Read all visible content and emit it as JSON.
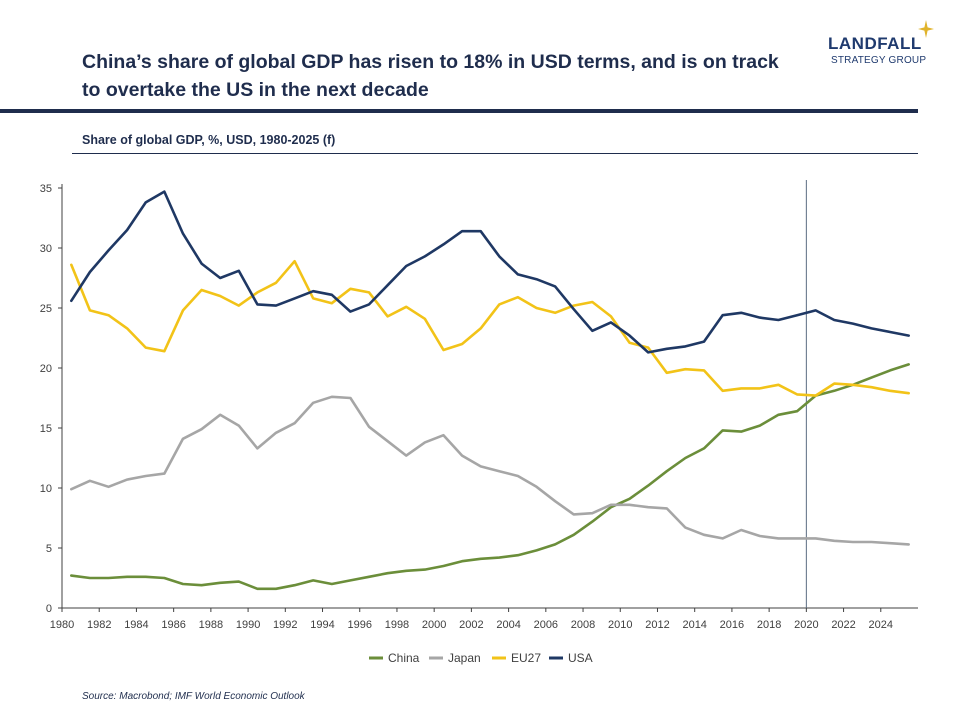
{
  "header": {
    "title": "China’s share of global GDP has risen to 18% in USD terms, and is on track to overtake the US in the next decade",
    "subtitle": "Share of global GDP, %, USD, 1980-2025 (f)"
  },
  "logo": {
    "name": "LANDFALL",
    "tagline": "STRATEGY GROUP",
    "icon": "sparkle-icon"
  },
  "footer": {
    "source": "Source: Macrobond; IMF World Economic Outlook"
  },
  "colors": {
    "China": "#6b8e3a",
    "Japan": "#a6a6a6",
    "EU27": "#f2c318",
    "USA": "#1f3864",
    "axis": "#404040",
    "forecast_line": "#5a6b80"
  },
  "chart_data": {
    "type": "line",
    "title": "Share of global GDP, %, USD, 1980-2025 (f)",
    "xlabel": "",
    "ylabel": "",
    "xlim": [
      1980,
      2026
    ],
    "ylim": [
      0,
      35
    ],
    "yticks": [
      0,
      5,
      10,
      15,
      20,
      25,
      30,
      35
    ],
    "xticks": [
      1980,
      1982,
      1984,
      1986,
      1988,
      1990,
      1992,
      1994,
      1996,
      1998,
      2000,
      2002,
      2004,
      2006,
      2008,
      2010,
      2012,
      2014,
      2016,
      2018,
      2020,
      2022,
      2024
    ],
    "forecast_marker_x": 2020,
    "legend_position": "bottom",
    "x": [
      1980,
      1981,
      1982,
      1983,
      1984,
      1985,
      1986,
      1987,
      1988,
      1989,
      1990,
      1991,
      1992,
      1993,
      1994,
      1995,
      1996,
      1997,
      1998,
      1999,
      2000,
      2001,
      2002,
      2003,
      2004,
      2005,
      2006,
      2007,
      2008,
      2009,
      2010,
      2011,
      2012,
      2013,
      2014,
      2015,
      2016,
      2017,
      2018,
      2019,
      2020,
      2021,
      2022,
      2023,
      2024,
      2025
    ],
    "series": [
      {
        "name": "China",
        "values": [
          2.7,
          2.5,
          2.5,
          2.6,
          2.6,
          2.5,
          2.0,
          1.9,
          2.1,
          2.2,
          1.6,
          1.6,
          1.9,
          2.3,
          2.0,
          2.3,
          2.6,
          2.9,
          3.1,
          3.2,
          3.5,
          3.9,
          4.1,
          4.2,
          4.4,
          4.8,
          5.3,
          6.1,
          7.2,
          8.4,
          9.1,
          10.2,
          11.4,
          12.5,
          13.3,
          14.8,
          14.7,
          15.2,
          16.1,
          16.4,
          17.7,
          18.1,
          18.6,
          19.2,
          19.8,
          20.3
        ]
      },
      {
        "name": "Japan",
        "values": [
          9.9,
          10.6,
          10.1,
          10.7,
          11.0,
          11.2,
          14.1,
          14.9,
          16.1,
          15.2,
          13.3,
          14.6,
          15.4,
          17.1,
          17.6,
          17.5,
          15.1,
          13.9,
          12.7,
          13.8,
          14.4,
          12.7,
          11.8,
          11.4,
          11.0,
          10.1,
          8.9,
          7.8,
          7.9,
          8.6,
          8.6,
          8.4,
          8.3,
          6.7,
          6.1,
          5.8,
          6.5,
          6.0,
          5.8,
          5.8,
          5.8,
          5.6,
          5.5,
          5.5,
          5.4,
          5.3
        ]
      },
      {
        "name": "EU27",
        "values": [
          28.6,
          24.8,
          24.4,
          23.3,
          21.7,
          21.4,
          24.8,
          26.5,
          26.0,
          25.2,
          26.3,
          27.1,
          28.9,
          25.8,
          25.4,
          26.6,
          26.3,
          24.3,
          25.1,
          24.1,
          21.5,
          22.0,
          23.3,
          25.3,
          25.9,
          25.0,
          24.6,
          25.2,
          25.5,
          24.3,
          22.1,
          21.7,
          19.6,
          19.9,
          19.8,
          18.1,
          18.3,
          18.3,
          18.6,
          17.8,
          17.7,
          18.7,
          18.6,
          18.4,
          18.1,
          17.9
        ]
      },
      {
        "name": "USA",
        "values": [
          25.6,
          28.0,
          29.8,
          31.5,
          33.8,
          34.7,
          31.2,
          28.7,
          27.5,
          28.1,
          25.3,
          25.2,
          25.8,
          26.4,
          26.1,
          24.7,
          25.3,
          26.9,
          28.5,
          29.3,
          30.3,
          31.4,
          31.4,
          29.3,
          27.8,
          27.4,
          26.8,
          24.9,
          23.1,
          23.8,
          22.7,
          21.3,
          21.6,
          21.8,
          22.2,
          24.4,
          24.6,
          24.2,
          24.0,
          24.4,
          24.8,
          24.0,
          23.7,
          23.3,
          23.0,
          22.7
        ]
      }
    ]
  }
}
